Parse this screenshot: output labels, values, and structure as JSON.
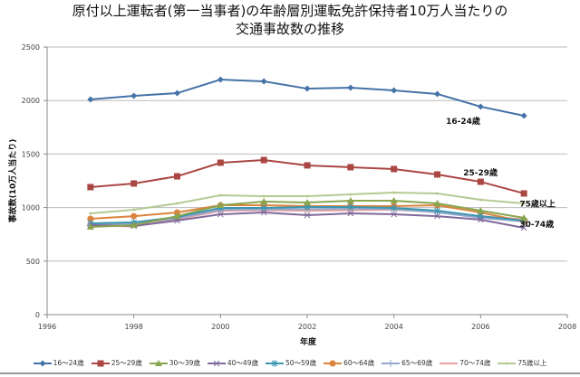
{
  "chart_data": {
    "type": "line",
    "title": [
      "原付以上運転者(第一当事者)の年齢層別運転免許保持者10万人当たりの",
      "交通事故数の推移"
    ],
    "xlabel": "年度",
    "ylabel": "事故数(10万人当たり)",
    "xlim": [
      1996,
      2008
    ],
    "ylim": [
      0,
      2500
    ],
    "xticks": [
      "1996",
      "1998",
      "2000",
      "2002",
      "2004",
      "2006",
      "2008"
    ],
    "yticks": [
      "0",
      "500",
      "1000",
      "1500",
      "2000",
      "2500"
    ],
    "grid": "horizontal",
    "legend_position": "bottom",
    "x": [
      1997,
      1998,
      1999,
      2000,
      2001,
      2002,
      2003,
      2004,
      2005,
      2006,
      2007
    ],
    "series": [
      {
        "name": "16～24歳",
        "color": "#4572A7",
        "marker": "diamond",
        "values": [
          2010,
          2044,
          2069,
          2196,
          2179,
          2111,
          2120,
          2095,
          2061,
          1943,
          1858
        ]
      },
      {
        "name": "25～29歳",
        "color": "#AA4643",
        "marker": "square",
        "values": [
          1191,
          1225,
          1292,
          1419,
          1444,
          1394,
          1377,
          1360,
          1309,
          1241,
          1132
        ]
      },
      {
        "name": "30～39歳",
        "color": "#89A54E",
        "marker": "triangle",
        "values": [
          819,
          836,
          920,
          1022,
          1056,
          1047,
          1064,
          1064,
          1039,
          971,
          904
        ]
      },
      {
        "name": "40～49歳",
        "color": "#80699B",
        "marker": "x",
        "values": [
          836,
          828,
          878,
          937,
          954,
          929,
          946,
          937,
          920,
          887,
          811
        ]
      },
      {
        "name": "50～59歳",
        "color": "#3D96AE",
        "marker": "star",
        "values": [
          853,
          862,
          912,
          997,
          997,
          1005,
          1005,
          997,
          971,
          920,
          878
        ]
      },
      {
        "name": "60～64歳",
        "color": "#DB843D",
        "marker": "circle",
        "values": [
          895,
          920,
          954,
          1022,
          1022,
          1013,
          1013,
          1013,
          1022,
          954,
          870
        ]
      },
      {
        "name": "65～69歳",
        "color": "#92A8CD",
        "marker": "plus",
        "values": [
          845,
          850,
          900,
          980,
          985,
          985,
          990,
          985,
          955,
          905,
          870
        ]
      },
      {
        "name": "70～74歳",
        "color": "#E8A0A0",
        "marker": "dash",
        "values": [
          830,
          825,
          890,
          970,
          975,
          970,
          975,
          980,
          960,
          920,
          890
        ]
      },
      {
        "name": "75歳以上",
        "color": "#B5CA92",
        "marker": "none",
        "values": [
          946,
          980,
          1039,
          1115,
          1106,
          1106,
          1123,
          1140,
          1132,
          1073,
          1039
        ]
      }
    ],
    "annotations": [
      {
        "text": "16-24歳",
        "x": 2005.2,
        "y": 1780
      },
      {
        "text": "25-29歳",
        "x": 2005.6,
        "y": 1300
      },
      {
        "text": "75歳以上",
        "x": 2006.9,
        "y": 1010
      },
      {
        "text": "30-74歳",
        "x": 2006.9,
        "y": 820
      }
    ]
  }
}
